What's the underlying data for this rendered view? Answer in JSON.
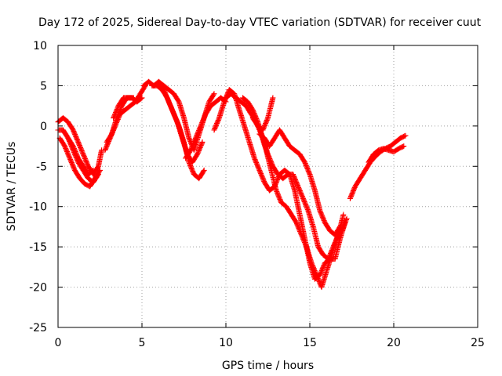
{
  "chart_data": {
    "type": "scatter",
    "title": "Day 172 of 2025, Sidereal Day-to-day VTEC variation (SDTVAR) for receiver cuut",
    "xlabel": "GPS time / hours",
    "ylabel": "SDTVAR / TECUs",
    "xlim": [
      0,
      25
    ],
    "ylim": [
      -25,
      10
    ],
    "xticks": [
      0,
      5,
      10,
      15,
      20,
      25
    ],
    "yticks": [
      -25,
      -20,
      -15,
      -10,
      -5,
      0,
      5,
      10
    ],
    "xtick_labels": [
      "0",
      "5",
      "10",
      "15",
      "20",
      "25"
    ],
    "ytick_labels": [
      "-25",
      "-20",
      "-15",
      "-10",
      "-5",
      "0",
      "5",
      "10"
    ],
    "grid": true,
    "marker": "+",
    "series": [
      {
        "name": "SDTVAR",
        "color": "#ff0000",
        "tracks": [
          {
            "x": [
              0.0,
              0.3,
              0.6,
              0.9,
              1.2,
              1.5,
              1.8,
              2.1,
              2.4,
              2.6
            ],
            "y": [
              0.5,
              1.0,
              0.5,
              -0.5,
              -2.0,
              -3.5,
              -5.0,
              -6.0,
              -5.0,
              -3.0
            ]
          },
          {
            "x": [
              0.0,
              0.3,
              0.6,
              0.9,
              1.2,
              1.5,
              1.8,
              2.1,
              2.4
            ],
            "y": [
              -0.5,
              -0.5,
              -1.5,
              -3.0,
              -4.5,
              -5.5,
              -6.5,
              -7.0,
              -6.0
            ]
          },
          {
            "x": [
              0.1,
              0.4,
              0.7,
              1.0,
              1.3,
              1.6,
              1.9,
              2.2,
              2.5
            ],
            "y": [
              -1.5,
              -2.5,
              -4.0,
              -5.5,
              -6.5,
              -7.2,
              -7.5,
              -6.5,
              -5.5
            ]
          },
          {
            "x": [
              0.3,
              0.6,
              0.9,
              1.2,
              1.5,
              1.8,
              2.1
            ],
            "y": [
              -0.5,
              -1.5,
              -2.5,
              -4.0,
              -5.0,
              -6.0,
              -5.5
            ]
          },
          {
            "x": [
              2.8,
              3.1,
              3.4,
              3.7,
              4.0,
              4.3,
              4.6,
              4.9,
              5.2
            ],
            "y": [
              -3.0,
              -1.5,
              0.0,
              1.5,
              2.0,
              2.5,
              3.0,
              4.0,
              5.0
            ]
          },
          {
            "x": [
              2.9,
              3.2,
              3.5,
              3.8,
              4.1,
              4.4,
              4.7,
              5.0
            ],
            "y": [
              -2.0,
              -1.0,
              1.0,
              2.5,
              3.5,
              3.5,
              3.0,
              3.5
            ]
          },
          {
            "x": [
              3.3,
              3.6,
              3.9,
              4.2,
              4.5
            ],
            "y": [
              1.0,
              2.5,
              3.5,
              3.5,
              3.5
            ]
          },
          {
            "x": [
              5.1,
              5.4,
              5.7,
              6.0,
              6.3,
              6.6,
              6.9,
              7.2,
              7.5,
              7.8,
              8.1,
              8.4,
              8.7,
              9.0,
              9.3
            ],
            "y": [
              5.0,
              5.5,
              5.0,
              5.5,
              5.0,
              4.5,
              4.0,
              3.0,
              1.0,
              -1.5,
              -3.0,
              -1.0,
              1.0,
              3.0,
              4.0
            ]
          },
          {
            "x": [
              5.6,
              5.9,
              6.2,
              6.5,
              6.8,
              7.1,
              7.4,
              7.7,
              8.0,
              8.3,
              8.6
            ],
            "y": [
              5.0,
              5.0,
              4.5,
              3.5,
              2.0,
              0.5,
              -1.5,
              -3.5,
              -4.5,
              -3.5,
              -2.0
            ]
          },
          {
            "x": [
              6.0,
              6.3,
              6.6,
              6.9,
              7.2,
              7.5,
              7.8,
              8.1,
              8.4,
              8.7
            ],
            "y": [
              5.0,
              4.5,
              3.0,
              1.5,
              0.0,
              -2.0,
              -4.5,
              -6.0,
              -6.5,
              -5.5
            ]
          },
          {
            "x": [
              7.6,
              7.9,
              8.2,
              8.5,
              8.8,
              9.1,
              9.4,
              9.7,
              10.0
            ],
            "y": [
              -4.0,
              -3.0,
              -1.5,
              0.0,
              1.5,
              2.5,
              3.0,
              3.5,
              3.0
            ]
          },
          {
            "x": [
              9.3,
              9.6,
              9.9,
              10.2,
              10.5,
              10.8,
              11.1,
              11.4,
              11.7,
              12.0,
              12.3,
              12.6,
              12.9,
              13.2,
              13.5,
              13.8,
              14.1,
              14.4,
              14.7,
              15.0,
              15.3,
              15.6,
              15.9,
              16.2,
              16.5,
              16.8,
              17.1
            ],
            "y": [
              -0.5,
              1.0,
              3.0,
              4.5,
              4.0,
              2.0,
              0.0,
              -2.0,
              -4.0,
              -5.5,
              -7.0,
              -8.0,
              -7.5,
              -6.0,
              -5.5,
              -6.0,
              -8.0,
              -11.0,
              -14.0,
              -17.0,
              -19.0,
              -18.5,
              -17.0,
              -16.5,
              -16.5,
              -14.0,
              -12.0
            ]
          },
          {
            "x": [
              10.0,
              10.3,
              10.6,
              10.9,
              11.2,
              11.5,
              11.8,
              12.1,
              12.4,
              12.7,
              13.0,
              13.3,
              13.6,
              13.9,
              14.2,
              14.5,
              14.8,
              15.1,
              15.4,
              15.7,
              16.0,
              16.3,
              16.6,
              16.9,
              17.2
            ],
            "y": [
              3.5,
              4.0,
              3.5,
              3.0,
              2.5,
              1.5,
              0.5,
              -1.0,
              -3.0,
              -5.5,
              -8.0,
              -9.5,
              -10.0,
              -11.0,
              -12.0,
              -13.5,
              -15.0,
              -17.0,
              -18.5,
              -20.0,
              -18.0,
              -16.0,
              -14.0,
              -13.0,
              -11.5
            ]
          },
          {
            "x": [
              11.0,
              11.3,
              11.6,
              11.9,
              12.2,
              12.5,
              12.8,
              13.1,
              13.4,
              13.7,
              14.0,
              14.3,
              14.6,
              14.9,
              15.2,
              15.5,
              15.8,
              16.1,
              16.4,
              16.7,
              17.0
            ],
            "y": [
              3.5,
              3.0,
              2.0,
              0.5,
              -1.5,
              -3.5,
              -5.0,
              -6.0,
              -6.5,
              -6.0,
              -6.0,
              -7.5,
              -9.0,
              -10.5,
              -12.5,
              -15.0,
              -16.0,
              -16.5,
              -15.0,
              -13.5,
              -11.0
            ]
          },
          {
            "x": [
              12.0,
              12.3,
              12.6,
              12.9,
              13.2,
              13.5,
              13.8,
              14.1,
              14.4,
              14.7,
              15.0,
              15.3,
              15.6,
              15.9,
              16.2,
              16.5,
              16.8
            ],
            "y": [
              -1.0,
              -1.5,
              -2.5,
              -1.5,
              -0.5,
              -1.5,
              -2.5,
              -3.0,
              -3.5,
              -4.5,
              -6.0,
              -8.0,
              -10.5,
              -12.0,
              -13.0,
              -13.5,
              -12.5
            ]
          },
          {
            "x": [
              11.6,
              11.9,
              12.2,
              12.5,
              12.8
            ],
            "y": [
              1.0,
              0.0,
              -0.5,
              1.0,
              3.5
            ]
          },
          {
            "x": [
              17.4,
              17.7,
              18.0,
              18.3,
              18.6,
              18.9,
              19.2,
              19.5,
              19.8,
              20.1,
              20.4,
              20.7
            ],
            "y": [
              -9.0,
              -7.5,
              -6.5,
              -5.5,
              -4.5,
              -3.8,
              -3.2,
              -2.8,
              -2.5,
              -2.0,
              -1.5,
              -1.2
            ]
          },
          {
            "x": [
              18.5,
              18.8,
              19.1,
              19.4,
              19.7,
              20.0,
              20.3,
              20.6
            ],
            "y": [
              -4.5,
              -3.5,
              -3.0,
              -2.8,
              -3.0,
              -3.2,
              -2.8,
              -2.5
            ]
          }
        ]
      }
    ]
  }
}
